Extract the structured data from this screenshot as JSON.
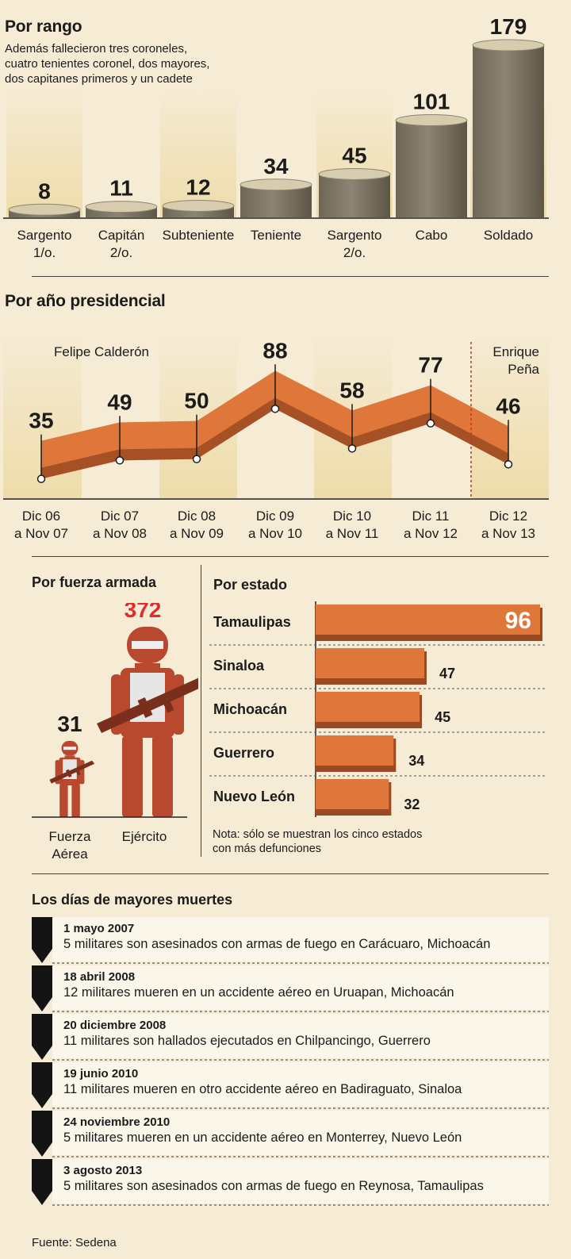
{
  "rango": {
    "title": "Por rango",
    "subtitle_lines": [
      "Además fallecieron tres coroneles,",
      "cuatro tenientes coronel, dos mayores,",
      "dos capitanes primeros y un cadete"
    ]
  },
  "anio": {
    "title": "Por año presidencial",
    "label_calderon": "Felipe Calderón",
    "label_pena_lines": [
      "Enrique",
      "Peña"
    ]
  },
  "fuerza": {
    "title": "Por fuerza armada"
  },
  "estado": {
    "title": "Por estado",
    "note_lines": [
      "Nota: sólo se muestran los cinco estados",
      "con más defunciones"
    ]
  },
  "dias": {
    "title": "Los días de mayores muertes",
    "items": [
      {
        "date": "1 mayo 2007",
        "desc": "5 militares son asesinados con armas de fuego en Carácuaro, Michoacán"
      },
      {
        "date": "18 abril 2008",
        "desc": "12 militares mueren en un accidente aéreo en Uruapan, Michoacán"
      },
      {
        "date": "20 diciembre 2008",
        "desc": "11 militares son hallados ejecutados en Chilpancingo, Guerrero"
      },
      {
        "date": "19 junio 2010",
        "desc": "11 militares mueren en otro accidente aéreo en Badiraguato, Sinaloa"
      },
      {
        "date": "24 noviembre 2010",
        "desc": "5 militares mueren en un accidente aéreo en Monterrey, Nuevo León"
      },
      {
        "date": "3 agosto 2013",
        "desc": "5 militares son asesinados con armas de fuego en Reynosa, Tamaulipas"
      }
    ]
  },
  "source": "Fuente: Sedena",
  "colors": {
    "orange": "#e0773a",
    "orange_dark": "#9a4a22",
    "red_value": "#e32b2b",
    "soldier": "#b8482e",
    "background": "#f6ecd5",
    "column_band": "#eedcaa"
  },
  "chart_data": [
    {
      "type": "bar",
      "title": "Por rango",
      "categories": [
        "Sargento 1/o.",
        "Capitán 2/o.",
        "Subteniente",
        "Teniente",
        "Sargento 2/o.",
        "Cabo",
        "Soldado"
      ],
      "category_lines": [
        [
          "Sargento",
          "1/o."
        ],
        [
          "Capitán",
          "2/o."
        ],
        [
          "Subteniente"
        ],
        [
          "Teniente"
        ],
        [
          "Sargento",
          "2/o."
        ],
        [
          "Cabo"
        ],
        [
          "Soldado"
        ]
      ],
      "values": [
        8,
        11,
        12,
        34,
        45,
        101,
        179
      ]
    },
    {
      "type": "line",
      "title": "Por año presidencial",
      "categories": [
        "Dic 06 a Nov 07",
        "Dic 07 a Nov 08",
        "Dic 08 a Nov 09",
        "Dic 09 a Nov 10",
        "Dic 10 a Nov 11",
        "Dic 11 a Nov 12",
        "Dic 12 a Nov 13"
      ],
      "category_lines": [
        [
          "Dic 06",
          "a Nov 07"
        ],
        [
          "Dic 07",
          "a Nov 08"
        ],
        [
          "Dic 08",
          "a Nov 09"
        ],
        [
          "Dic 09",
          "a Nov 10"
        ],
        [
          "Dic 10",
          "a Nov 11"
        ],
        [
          "Dic 11",
          "a Nov 12"
        ],
        [
          "Dic 12",
          "a Nov 13"
        ]
      ],
      "values": [
        35,
        49,
        50,
        88,
        58,
        77,
        46
      ]
    },
    {
      "type": "bar",
      "title": "Por fuerza armada",
      "categories": [
        "Fuerza Aérea",
        "Ejército"
      ],
      "category_lines": [
        [
          "Fuerza",
          "Aérea"
        ],
        [
          "Ejército"
        ]
      ],
      "values": [
        31,
        372
      ]
    },
    {
      "type": "bar",
      "title": "Por estado",
      "orientation": "horizontal",
      "categories": [
        "Tamaulipas",
        "Sinaloa",
        "Michoacán",
        "Guerrero",
        "Nuevo León"
      ],
      "values": [
        96,
        47,
        45,
        34,
        32
      ]
    }
  ]
}
